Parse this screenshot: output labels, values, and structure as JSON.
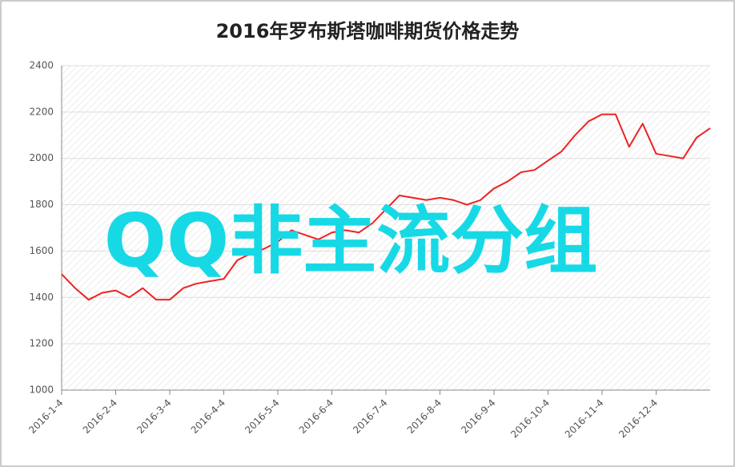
{
  "chart_data": {
    "type": "line",
    "title": "2016年罗布斯塔咖啡期货价格走势",
    "watermark": "QQ非主流分组",
    "categories": [
      "2016-1-4",
      null,
      null,
      null,
      "2016-2-4",
      null,
      null,
      null,
      "2016-3-4",
      null,
      null,
      null,
      "2016-4-4",
      null,
      null,
      null,
      "2016-5-4",
      null,
      null,
      null,
      "2016-6-4",
      null,
      null,
      null,
      "2016-7-4",
      null,
      null,
      null,
      "2016-8-4",
      null,
      null,
      null,
      "2016-9-4",
      null,
      null,
      null,
      "2016-10-4",
      null,
      null,
      null,
      "2016-11-4",
      null,
      null,
      null,
      "2016-12-4",
      null,
      null,
      null,
      null
    ],
    "series": [
      {
        "color": "#ee2222",
        "values": [
          1500,
          1440,
          1390,
          1420,
          1430,
          1400,
          1440,
          1390,
          1390,
          1440,
          1460,
          1470,
          1480,
          1560,
          1590,
          1610,
          1640,
          1690,
          1670,
          1650,
          1680,
          1690,
          1680,
          1720,
          1780,
          1840,
          1830,
          1820,
          1830,
          1820,
          1800,
          1820,
          1870,
          1900,
          1940,
          1950,
          1990,
          2030,
          2100,
          2160,
          2190,
          2190,
          2050,
          2150,
          2020,
          2010,
          2000,
          2090,
          2130
        ]
      }
    ],
    "ylim": [
      1000,
      2400
    ],
    "yticks": [
      1000,
      1200,
      1400,
      1600,
      1800,
      2000,
      2200,
      2400
    ],
    "grid": true
  }
}
